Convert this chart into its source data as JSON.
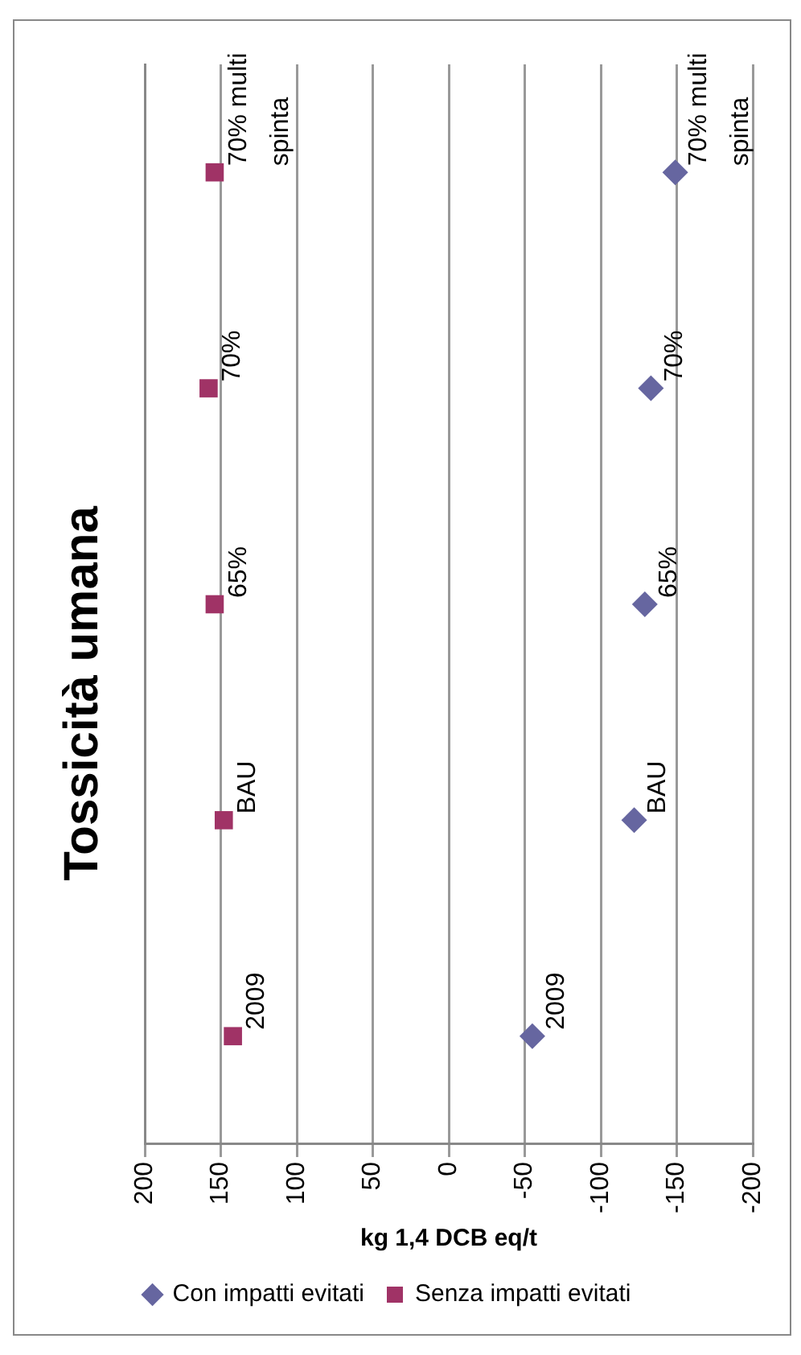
{
  "chart_data": {
    "type": "scatter",
    "title": "Tossicità umana",
    "xlabel": "kg 1,4 DCB eq/t",
    "orientation": "horizontal",
    "categories": [
      null,
      null,
      null,
      null,
      null
    ],
    "series": [
      {
        "name": "Con impatti evitati",
        "color": "#6666a0",
        "marker": "diamond",
        "values": [
          -149,
          -133,
          -129,
          -122,
          -55
        ]
      },
      {
        "name": "Senza impatti evitati",
        "color": "#a03366",
        "marker": "square",
        "values": [
          154,
          158,
          154,
          148,
          142
        ]
      }
    ],
    "annotations": [
      "70% multi spinta",
      "70%",
      "65%",
      "BAU",
      "2009",
      "70% multi spinta",
      "70%",
      "65%",
      "BAU",
      "2009"
    ],
    "xlim": [
      200,
      -200
    ],
    "xticks": [
      200,
      150,
      100,
      50,
      0,
      -50,
      -100,
      -150,
      -200
    ],
    "grid": "x",
    "legend": "bottom",
    "tick_labels": "x"
  }
}
